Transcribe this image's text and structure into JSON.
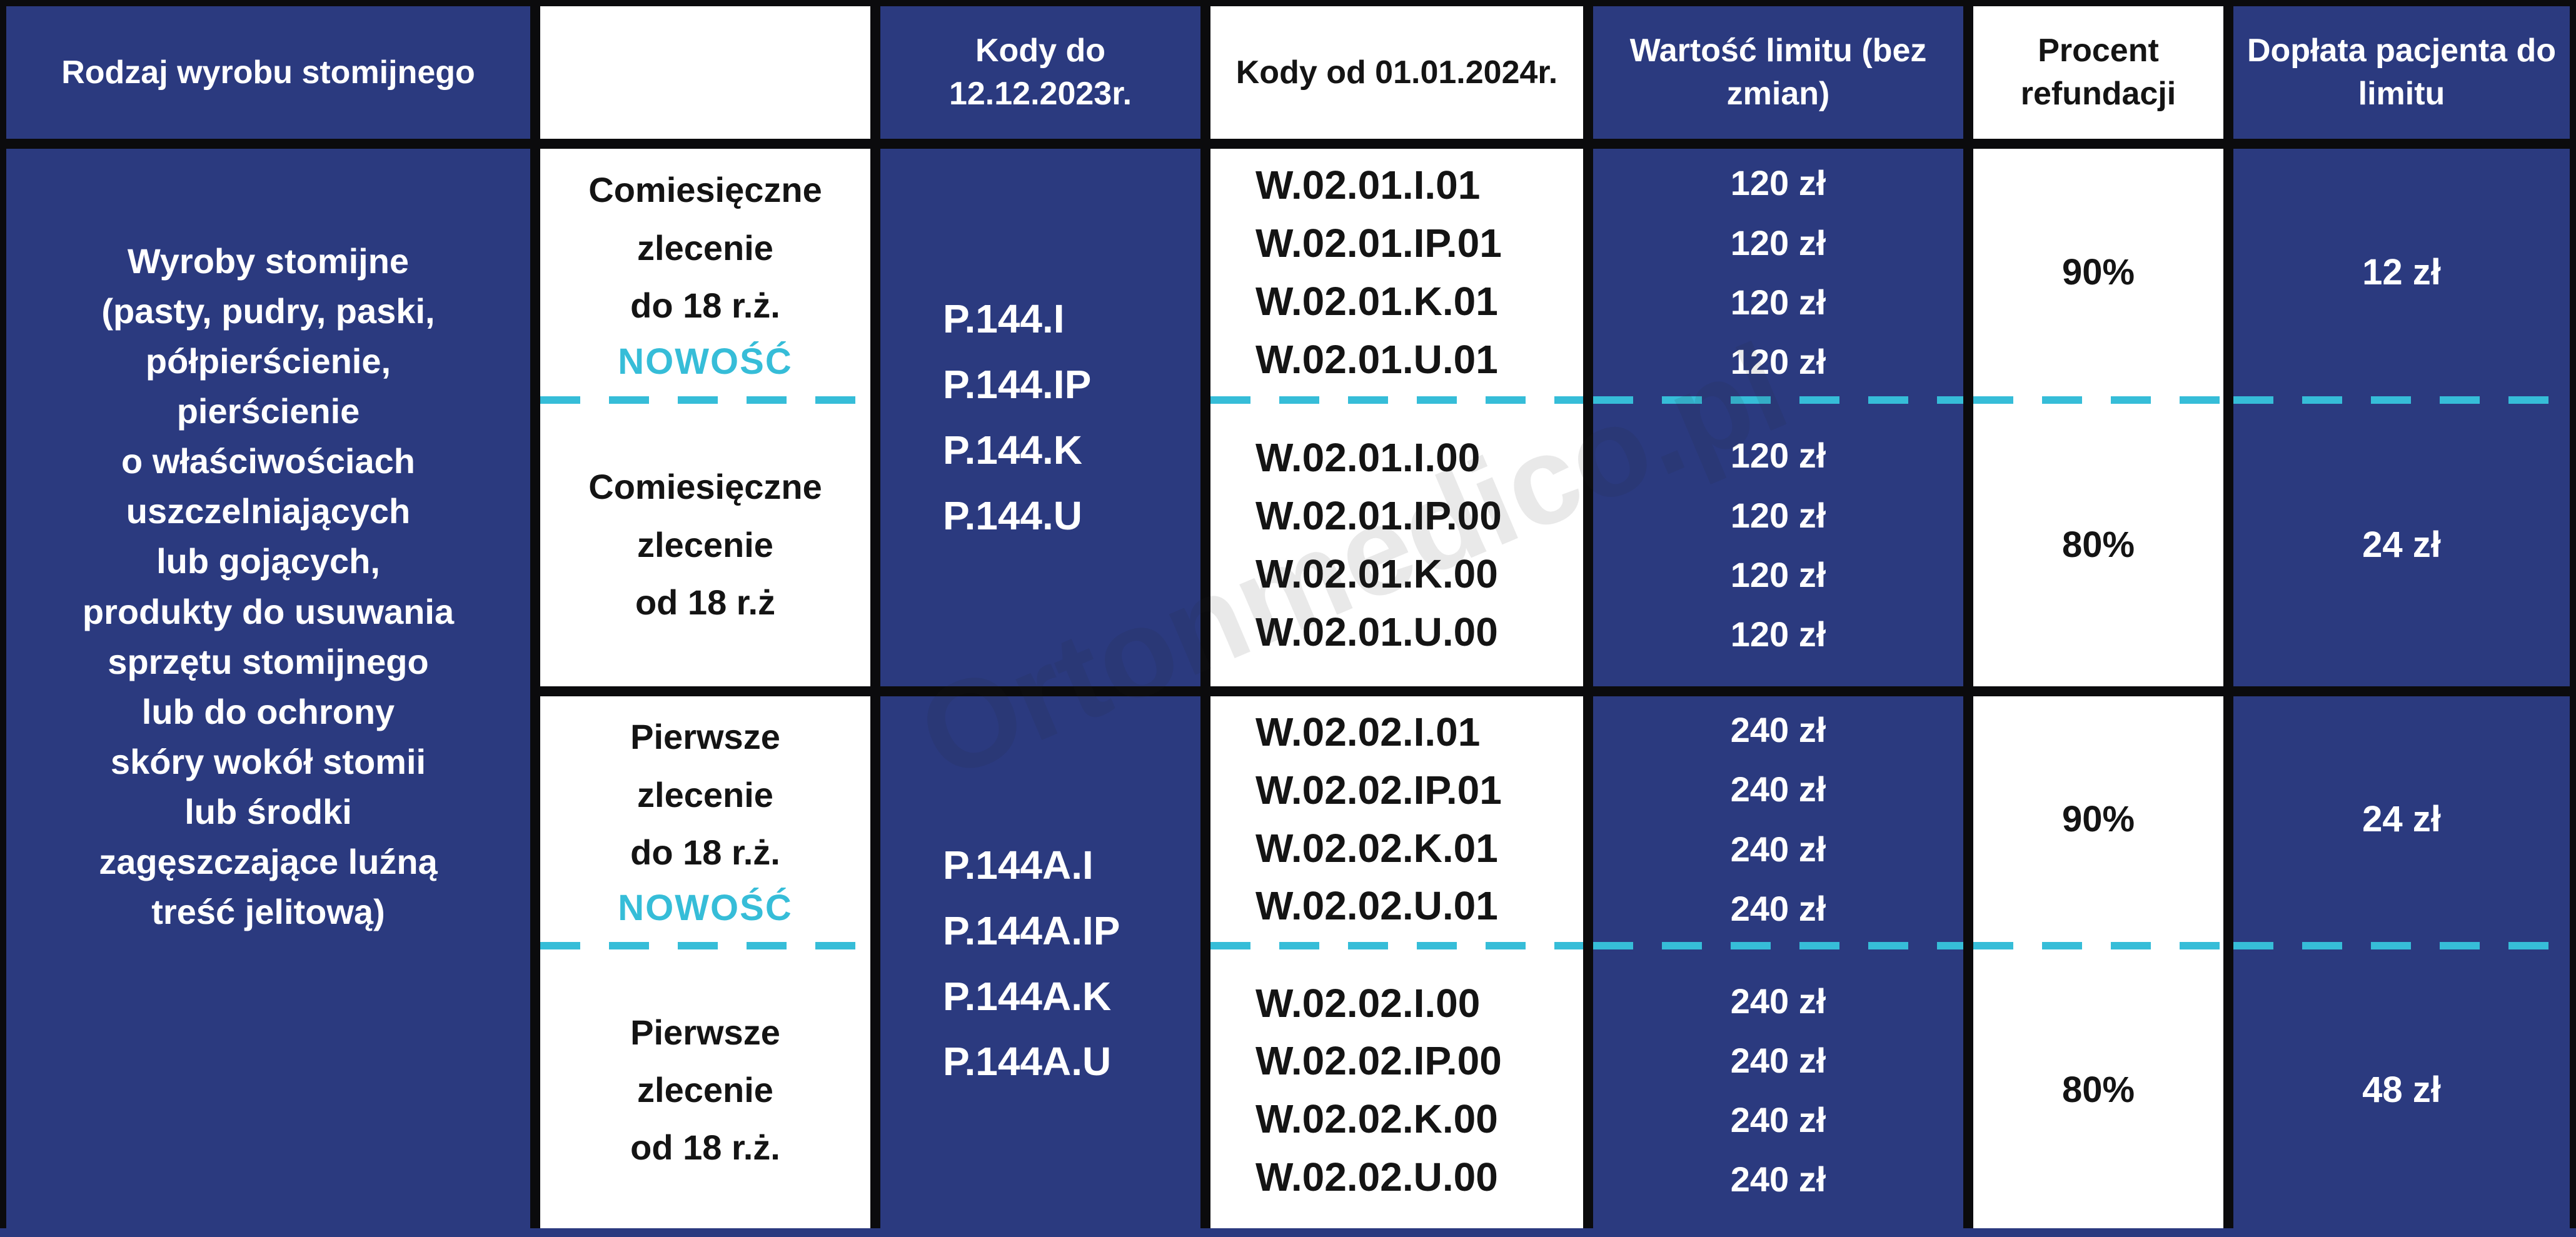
{
  "table": {
    "columns": [
      {
        "label": "Rodzaj wyrobu stomijnego"
      },
      {
        "label": ""
      },
      {
        "label": "Kody do 12.12.2023r."
      },
      {
        "label": "Kody od 01.01.2024r."
      },
      {
        "label": "Wartość limitu (bez zmian)"
      },
      {
        "label": "Procent refundacji"
      },
      {
        "label": "Dopłata pacjenta do limitu"
      }
    ],
    "product_description_lines": [
      "Wyroby stomijne",
      "(pasty, pudry, paski,",
      "półpierścienie,",
      "pierścienie",
      "o właściwościach",
      "uszczelniających",
      "lub gojących,",
      "produkty do usuwania",
      "sprzętu stomijnego",
      "lub do ochrony",
      "skóry wokół stomii",
      "lub środki",
      "zagęszczające luźną",
      "treść jelitową)"
    ],
    "groups": [
      {
        "codes_old": [
          "P.144.I",
          "P.144.IP",
          "P.144.K",
          "P.144.U"
        ],
        "rows": [
          {
            "order_type_lines": [
              "Comiesięczne",
              "zlecenie",
              "do 18 r.ż."
            ],
            "badge": "NOWOŚĆ",
            "codes_new": [
              "W.02.01.I.01",
              "W.02.01.IP.01",
              "W.02.01.K.01",
              "W.02.01.U.01"
            ],
            "limits": [
              "120 zł",
              "120 zł",
              "120 zł",
              "120 zł"
            ],
            "refund": "90%",
            "copay": "12 zł"
          },
          {
            "order_type_lines": [
              "Comiesięczne",
              "zlecenie",
              "od 18 r.ż"
            ],
            "badge": "",
            "codes_new": [
              "W.02.01.I.00",
              "W.02.01.IP.00",
              "W.02.01.K.00",
              "W.02.01.U.00"
            ],
            "limits": [
              "120 zł",
              "120 zł",
              "120 zł",
              "120 zł"
            ],
            "refund": "80%",
            "copay": "24 zł"
          }
        ]
      },
      {
        "codes_old": [
          "P.144A.I",
          "P.144A.IP",
          "P.144A.K",
          "P.144A.U"
        ],
        "rows": [
          {
            "order_type_lines": [
              "Pierwsze",
              "zlecenie",
              "do 18 r.ż."
            ],
            "badge": "NOWOŚĆ",
            "codes_new": [
              "W.02.02.I.01",
              "W.02.02.IP.01",
              "W.02.02.K.01",
              "W.02.02.U.01"
            ],
            "limits": [
              "240 zł",
              "240 zł",
              "240 zł",
              "240 zł"
            ],
            "refund": "90%",
            "copay": "24 zł"
          },
          {
            "order_type_lines": [
              "Pierwsze",
              "zlecenie",
              "od 18 r.ż."
            ],
            "badge": "",
            "codes_new": [
              "W.02.02.I.00",
              "W.02.02.IP.00",
              "W.02.02.K.00",
              "W.02.02.U.00"
            ],
            "limits": [
              "240 zł",
              "240 zł",
              "240 zł",
              "240 zł"
            ],
            "refund": "80%",
            "copay": "48 zł"
          }
        ]
      }
    ],
    "watermark": "Ortonmedico.pl",
    "colors": {
      "navy": "#2b3a7f",
      "cyan": "#36bdd8",
      "border_black": "#0b0b0d",
      "white": "#ffffff"
    }
  }
}
